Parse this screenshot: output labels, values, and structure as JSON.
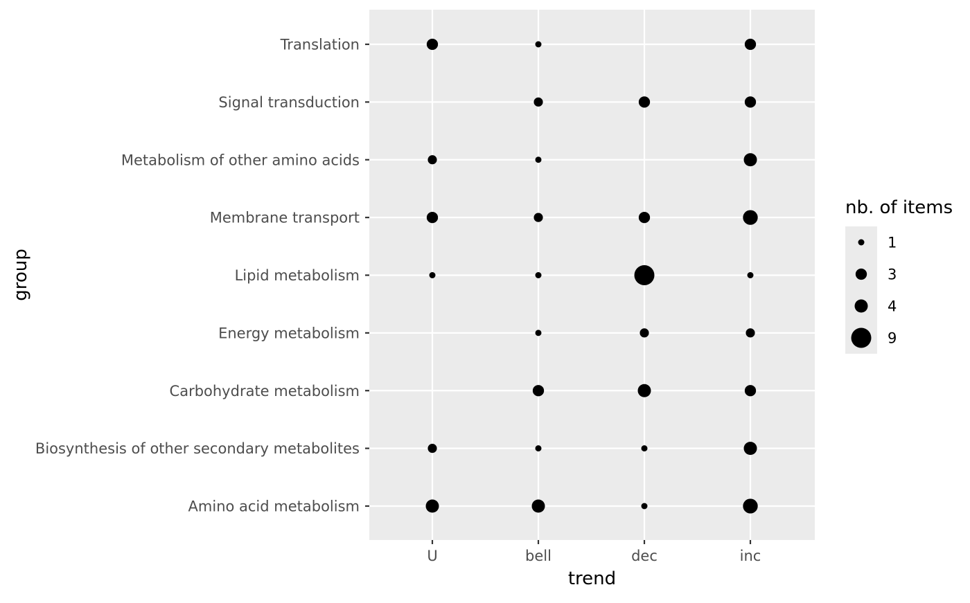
{
  "chart_data": {
    "type": "scatter",
    "title": "",
    "xlabel": "trend",
    "ylabel": "group",
    "x_categories": [
      "U",
      "bell",
      "dec",
      "inc"
    ],
    "y_categories": [
      "Amino acid metabolism",
      "Biosynthesis of other secondary metabolites",
      "Carbohydrate metabolism",
      "Energy metabolism",
      "Lipid metabolism",
      "Membrane transport",
      "Metabolism of other amino acids",
      "Signal transduction",
      "Translation"
    ],
    "points": [
      {
        "x": "U",
        "y": "Translation",
        "size": 3
      },
      {
        "x": "bell",
        "y": "Translation",
        "size": 1
      },
      {
        "x": "inc",
        "y": "Translation",
        "size": 3
      },
      {
        "x": "bell",
        "y": "Signal transduction",
        "size": 2
      },
      {
        "x": "dec",
        "y": "Signal transduction",
        "size": 3
      },
      {
        "x": "inc",
        "y": "Signal transduction",
        "size": 3
      },
      {
        "x": "U",
        "y": "Metabolism of other amino acids",
        "size": 2
      },
      {
        "x": "bell",
        "y": "Metabolism of other amino acids",
        "size": 1
      },
      {
        "x": "inc",
        "y": "Metabolism of other amino acids",
        "size": 4
      },
      {
        "x": "U",
        "y": "Membrane transport",
        "size": 3
      },
      {
        "x": "bell",
        "y": "Membrane transport",
        "size": 2
      },
      {
        "x": "dec",
        "y": "Membrane transport",
        "size": 3
      },
      {
        "x": "inc",
        "y": "Membrane transport",
        "size": 5
      },
      {
        "x": "U",
        "y": "Lipid metabolism",
        "size": 1
      },
      {
        "x": "bell",
        "y": "Lipid metabolism",
        "size": 1
      },
      {
        "x": "dec",
        "y": "Lipid metabolism",
        "size": 9
      },
      {
        "x": "inc",
        "y": "Lipid metabolism",
        "size": 1
      },
      {
        "x": "bell",
        "y": "Energy metabolism",
        "size": 1
      },
      {
        "x": "dec",
        "y": "Energy metabolism",
        "size": 2
      },
      {
        "x": "inc",
        "y": "Energy metabolism",
        "size": 2
      },
      {
        "x": "bell",
        "y": "Carbohydrate metabolism",
        "size": 3
      },
      {
        "x": "dec",
        "y": "Carbohydrate metabolism",
        "size": 4
      },
      {
        "x": "inc",
        "y": "Carbohydrate metabolism",
        "size": 3
      },
      {
        "x": "U",
        "y": "Biosynthesis of other secondary metabolites",
        "size": 2
      },
      {
        "x": "bell",
        "y": "Biosynthesis of other secondary metabolites",
        "size": 1
      },
      {
        "x": "dec",
        "y": "Biosynthesis of other secondary metabolites",
        "size": 1
      },
      {
        "x": "inc",
        "y": "Biosynthesis of other secondary metabolites",
        "size": 4
      },
      {
        "x": "U",
        "y": "Amino acid metabolism",
        "size": 4
      },
      {
        "x": "bell",
        "y": "Amino acid metabolism",
        "size": 4
      },
      {
        "x": "dec",
        "y": "Amino acid metabolism",
        "size": 1
      },
      {
        "x": "inc",
        "y": "Amino acid metabolism",
        "size": 5
      }
    ],
    "legend": {
      "title": "nb. of items",
      "position": "right",
      "entries": [
        {
          "label": "1",
          "value": 1
        },
        {
          "label": "3",
          "value": 3
        },
        {
          "label": "4",
          "value": 4
        },
        {
          "label": "9",
          "value": 9
        }
      ]
    },
    "grid": true,
    "colors": {
      "panel": "#ebebeb",
      "grid": "#ffffff",
      "point": "#000000",
      "tick_text": "#4d4d4d",
      "tick_mark": "#333333"
    }
  }
}
